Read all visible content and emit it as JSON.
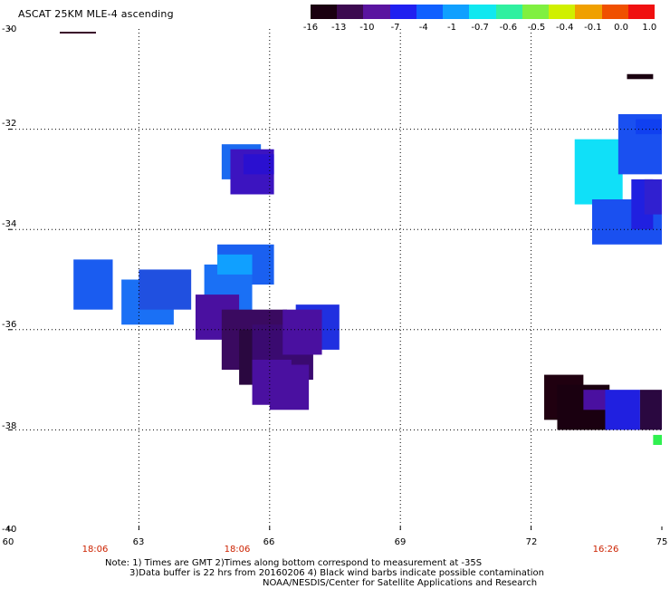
{
  "title": "ASCAT 25KM MLE-4 ascending",
  "colorbar": {
    "labels": [
      "-16",
      "-13",
      "-10",
      "-7",
      "-4",
      "-1",
      "-0.7",
      "-0.6",
      "-0.5",
      "-0.4",
      "-0.1",
      "0.0",
      "1.0"
    ],
    "colors": [
      "#1a0010",
      "#3c0a50",
      "#5a14a0",
      "#2020f0",
      "#1060ff",
      "#10a0ff",
      "#10e8f0",
      "#30f0a0",
      "#80f040",
      "#d0f000",
      "#f0a000",
      "#f05000",
      "#f01010"
    ]
  },
  "axes": {
    "y_ticks": [
      "-30",
      "-32",
      "-34",
      "-36",
      "-38",
      "-40"
    ],
    "x_ticks": [
      "60",
      "63",
      "66",
      "69",
      "72",
      "75"
    ]
  },
  "times": [
    "18:06",
    "18:06",
    "16:26"
  ],
  "notes": [
    "Note: 1) Times are GMT 2)Times along bottom correspond to measurement at -35S",
    "3)Data buffer is 22 hrs from 20160206 4) Black wind barbs indicate possible contamination",
    "NOAA/NESDIS/Center for Satellite Applications and Research"
  ],
  "map_data": {
    "lon_range": [
      60,
      75
    ],
    "lat_range": [
      -40,
      -30
    ],
    "cells": [
      {
        "lon0": 61.5,
        "lon1": 62.4,
        "lat0": -35.6,
        "lat1": -34.6,
        "color": "#1a5cf0"
      },
      {
        "lon0": 62.6,
        "lon1": 63.8,
        "lat0": -35.9,
        "lat1": -35.0,
        "color": "#1a70f5"
      },
      {
        "lon0": 63.0,
        "lon1": 64.2,
        "lat0": -35.6,
        "lat1": -34.8,
        "color": "#2050e0"
      },
      {
        "lon0": 64.9,
        "lon1": 65.8,
        "lat0": -33.0,
        "lat1": -32.3,
        "color": "#1a6af0"
      },
      {
        "lon0": 65.1,
        "lon1": 66.1,
        "lat0": -33.3,
        "lat1": -32.4,
        "color": "#3c14c0"
      },
      {
        "lon0": 65.4,
        "lon1": 66.1,
        "lat0": -32.9,
        "lat1": -32.5,
        "color": "#2a10d0"
      },
      {
        "lon0": 64.8,
        "lon1": 66.1,
        "lat0": -35.1,
        "lat1": -34.3,
        "color": "#1a60f0"
      },
      {
        "lon0": 64.5,
        "lon1": 65.6,
        "lat0": -35.8,
        "lat1": -34.7,
        "color": "#1a70f5"
      },
      {
        "lon0": 64.8,
        "lon1": 65.6,
        "lat0": -34.9,
        "lat1": -34.5,
        "color": "#10a0ff"
      },
      {
        "lon0": 64.3,
        "lon1": 65.3,
        "lat0": -36.2,
        "lat1": -35.3,
        "color": "#4a10a0"
      },
      {
        "lon0": 64.9,
        "lon1": 66.4,
        "lat0": -36.8,
        "lat1": -35.6,
        "color": "#3a0a60"
      },
      {
        "lon0": 65.3,
        "lon1": 66.6,
        "lat0": -37.1,
        "lat1": -36.0,
        "color": "#2a0840"
      },
      {
        "lon0": 65.6,
        "lon1": 67.0,
        "lat0": -37.0,
        "lat1": -35.9,
        "color": "#3a0a70"
      },
      {
        "lon0": 66.6,
        "lon1": 67.6,
        "lat0": -36.4,
        "lat1": -35.5,
        "color": "#2030e0"
      },
      {
        "lon0": 66.3,
        "lon1": 67.2,
        "lat0": -36.5,
        "lat1": -35.6,
        "color": "#4a10a0"
      },
      {
        "lon0": 65.6,
        "lon1": 66.5,
        "lat0": -37.5,
        "lat1": -36.6,
        "color": "#4a10a0"
      },
      {
        "lon0": 66.0,
        "lon1": 66.9,
        "lat0": -37.6,
        "lat1": -36.7,
        "color": "#4a10a0"
      },
      {
        "lon0": 73.0,
        "lon1": 74.1,
        "lat0": -33.5,
        "lat1": -32.2,
        "color": "#10e0f8"
      },
      {
        "lon0": 74.0,
        "lon1": 75.0,
        "lat0": -32.9,
        "lat1": -31.7,
        "color": "#1a50f0"
      },
      {
        "lon0": 74.4,
        "lon1": 75.0,
        "lat0": -32.1,
        "lat1": -31.8,
        "color": "#1040f0"
      },
      {
        "lon0": 73.4,
        "lon1": 75.0,
        "lat0": -34.3,
        "lat1": -33.4,
        "color": "#1a50f0"
      },
      {
        "lon0": 74.3,
        "lon1": 74.8,
        "lat0": -34.0,
        "lat1": -33.0,
        "color": "#2020e0"
      },
      {
        "lon0": 74.6,
        "lon1": 75.0,
        "lat0": -33.7,
        "lat1": -33.0,
        "color": "#3020d0"
      },
      {
        "lon0": 74.2,
        "lon1": 74.8,
        "lat0": -31.0,
        "lat1": -30.9,
        "color": "#1a0010"
      },
      {
        "lon0": 72.3,
        "lon1": 73.2,
        "lat0": -37.8,
        "lat1": -36.9,
        "color": "#200010"
      },
      {
        "lon0": 72.6,
        "lon1": 73.8,
        "lat0": -38.0,
        "lat1": -37.1,
        "color": "#1a0010"
      },
      {
        "lon0": 73.2,
        "lon1": 73.8,
        "lat0": -37.6,
        "lat1": -37.2,
        "color": "#4a10a0"
      },
      {
        "lon0": 73.7,
        "lon1": 74.5,
        "lat0": -38.0,
        "lat1": -37.2,
        "color": "#2020e0"
      },
      {
        "lon0": 74.5,
        "lon1": 75.0,
        "lat0": -38.0,
        "lat1": -37.2,
        "color": "#2a0840"
      },
      {
        "lon0": 74.8,
        "lon1": 75.0,
        "lat0": -38.3,
        "lat1": -38.1,
        "color": "#30f050"
      }
    ]
  }
}
